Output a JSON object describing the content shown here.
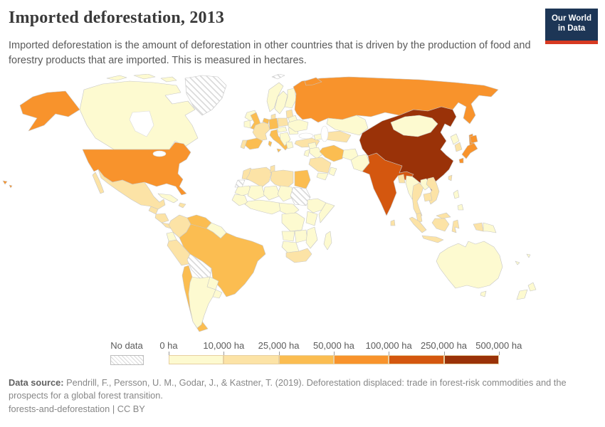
{
  "header": {
    "title": "Imported deforestation, 2013",
    "subtitle": "Imported deforestation is the amount of deforestation in other countries that is driven by the production of food and forestry products that are imported. This is measured in hectares.",
    "logo": {
      "line1": "Our World",
      "line2": "in Data",
      "bg_color": "#1d3656",
      "accent_color": "#d73a22"
    }
  },
  "legend": {
    "no_data_label": "No data",
    "tick_labels": [
      "0 ha",
      "10,000 ha",
      "25,000 ha",
      "50,000 ha",
      "100,000 ha",
      "250,000 ha",
      "500,000 ha"
    ],
    "bin_colors": [
      "#fdfad0",
      "#fce3a6",
      "#fbbd51",
      "#f8932c",
      "#d4570f",
      "#9a3208"
    ],
    "no_data_stripe_color": "#d8d8d8"
  },
  "footer": {
    "source_label": "Data source:",
    "source_text": " Pendrill, F., Persson, U. M., Godar, J., & Kastner, T. (2019). Deforestation displaced: trade in forest-risk commodities and the prospects for a global forest transition.",
    "note": "forests-and-deforestation | CC BY"
  },
  "chart_data": {
    "type": "heatmap",
    "subtype": "choropleth-world-map",
    "title": "Imported deforestation, 2013",
    "unit": "hectares",
    "legend_position": "bottom",
    "bins": [
      {
        "range": "0–10,000 ha",
        "color": "#fdfad0"
      },
      {
        "range": "10,000–25,000 ha",
        "color": "#fce3a6"
      },
      {
        "range": "25,000–50,000 ha",
        "color": "#fbbd51"
      },
      {
        "range": "50,000–100,000 ha",
        "color": "#f8932c"
      },
      {
        "range": "100,000–250,000 ha",
        "color": "#d4570f"
      },
      {
        "range": "250,000–500,000 ha",
        "color": "#9a3208"
      }
    ],
    "country_bins": {
      "usa": 4,
      "canada": 1,
      "greenland": "no_data",
      "mexico": 2,
      "guatemala": 2,
      "honduras-nicaragua": 2,
      "costa-rica-panama": 2,
      "cuba": 1,
      "hispaniola": 2,
      "colombia": 2,
      "venezuela": 3,
      "guyanas": 1,
      "ecuador": 1,
      "peru": 2,
      "brazil": 3,
      "bolivia": "no_data",
      "paraguay": 1,
      "chile": 3,
      "argentina": 1,
      "uruguay": 1,
      "iceland": 1,
      "uk": 3,
      "ireland": 1,
      "norway": 1,
      "sweden": 1,
      "finland": 1,
      "denmark": 2,
      "baltics": 2,
      "belarus": 1,
      "poland": 2,
      "germany": 3,
      "benelux": 3,
      "france": 2,
      "spain": 3,
      "portugal": 2,
      "italy": 3,
      "austria-czechia": 1,
      "balkans": 1,
      "greece": 1,
      "romania": 1,
      "ukraine": 1,
      "turkey": 2,
      "russia": 4,
      "kazakhstan": 1,
      "uzbekistan-turkmenistan": 2,
      "caucasus": 1,
      "syria": 1,
      "iraq": 1,
      "jordan-israel": 1,
      "iran": 3,
      "saudi-arabia": 2,
      "yemen": 1,
      "oman": 1,
      "afghanistan": 1,
      "pakistan": 1,
      "india": 5,
      "bangladesh": 2,
      "sri-lanka": 2,
      "china": 6,
      "mongolia": 1,
      "taiwan": 2,
      "north-korea": 1,
      "south-korea": 2,
      "japan": 4,
      "myanmar": 1,
      "thailand": 2,
      "laos": 1,
      "vietnam": 2,
      "cambodia": 2,
      "malaysia": 2,
      "indonesia": 2,
      "papua-new-guinea": 1,
      "philippines": 1,
      "morocco": 2,
      "western-sahara": "no_data",
      "algeria": 2,
      "tunisia": 2,
      "libya": 2,
      "egypt": 3,
      "mauritania": 1,
      "mali": 1,
      "niger": 1,
      "chad": 1,
      "sudan": "no_data",
      "senegal-guinea": 1,
      "west-africa": 1,
      "cameroon-car": 1,
      "ethiopia": 1,
      "somalia": 1,
      "kenya-tanzania": 1,
      "drc": 1,
      "angola": 1,
      "zambia-zimbabwe": 1,
      "mozambique": 1,
      "namibia-botswana": 1,
      "south-africa": 2,
      "madagascar": 1,
      "svalbard": "no_data",
      "australia": 1,
      "new-zealand": 1,
      "fiji": 1,
      "new-caledonia": 1
    }
  }
}
